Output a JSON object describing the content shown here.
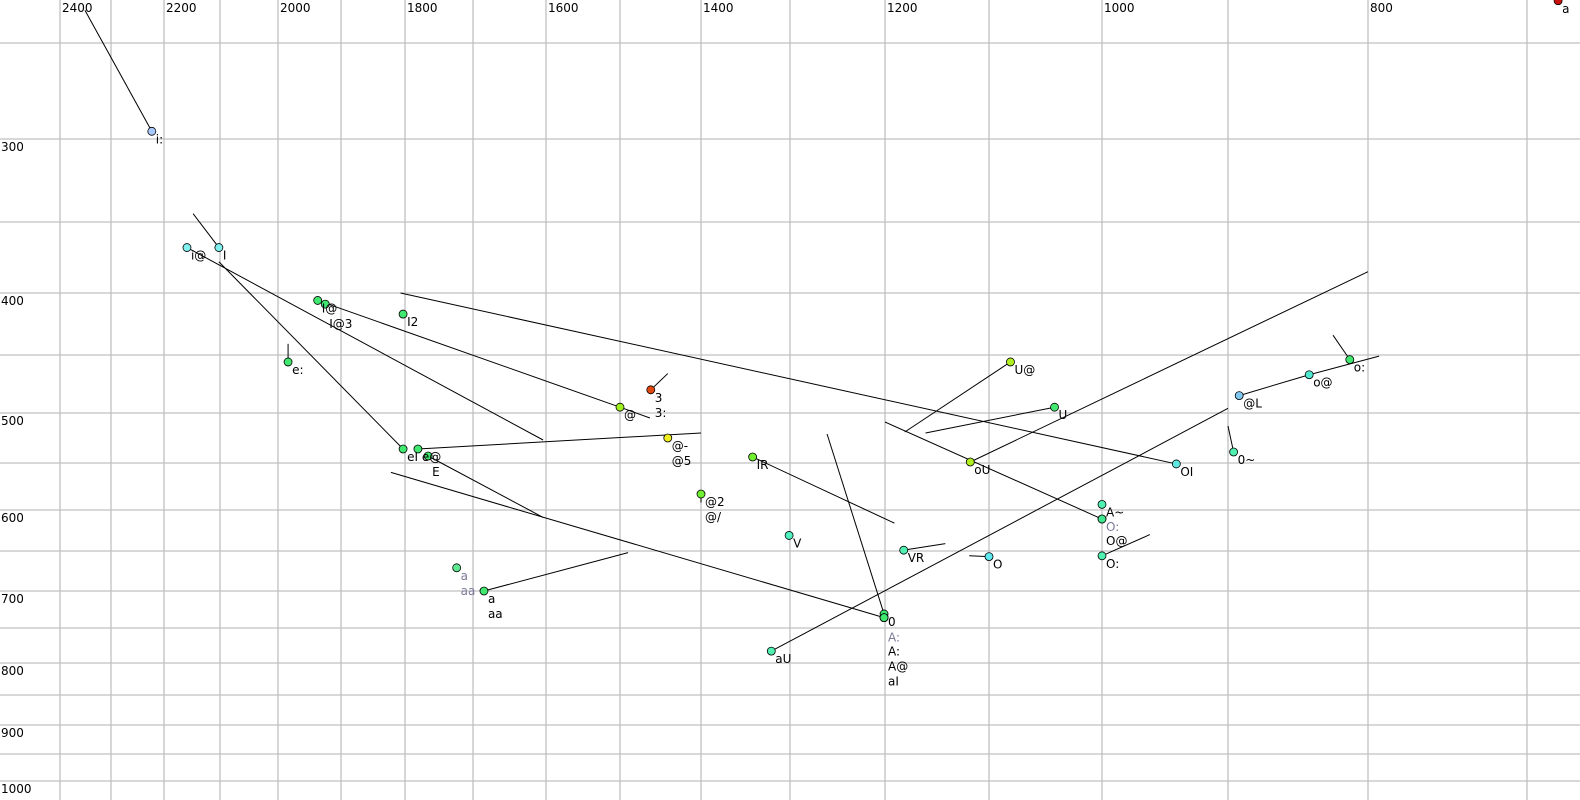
{
  "chart_data": {
    "type": "scatter",
    "title": "",
    "xlabel": "",
    "ylabel": "",
    "x_axis": {
      "ticks": [
        2400,
        2200,
        2000,
        1800,
        1600,
        1400,
        1200,
        1000,
        800
      ],
      "gridlines": [
        2400,
        2300,
        2200,
        2100,
        2000,
        1900,
        1800,
        1700,
        1600,
        1500,
        1400,
        1300,
        1200,
        1100,
        1000,
        900,
        800,
        700
      ],
      "reversed": true,
      "position": "top"
    },
    "y_axis": {
      "ticks": [
        300,
        400,
        500,
        600,
        700,
        800,
        900,
        1000
      ],
      "gridlines": [
        250,
        300,
        350,
        400,
        450,
        500,
        550,
        600,
        650,
        700,
        750,
        800,
        850,
        900,
        950,
        1000
      ],
      "reversed": true,
      "position": "left"
    },
    "xlim": [
      2400,
      700
    ],
    "ylim": [
      250,
      1000
    ],
    "grid": true,
    "grid_color": "#c0c0c0",
    "muted_label_color": "#7a7a9a",
    "points": [
      {
        "labels": [
          "a"
        ],
        "x": 683,
        "y": 228,
        "color": "#cc1010"
      },
      {
        "labels": [
          "i:"
        ],
        "x": 2223,
        "y": 296,
        "color": "#a8c8ff",
        "trail": [
          2351,
          233
        ]
      },
      {
        "labels": [
          "I"
        ],
        "x": 2102,
        "y": 368,
        "color": "#80f0f0",
        "trail": [
          2148,
          345
        ]
      },
      {
        "labels": [
          "i@"
        ],
        "x": 2159,
        "y": 368,
        "color": "#80f0f0",
        "trail": [
          1604,
          527
        ]
      },
      {
        "labels": [
          "e:"
        ],
        "x": 1984,
        "y": 456,
        "color": "#40e870",
        "trail": [
          1984,
          441
        ]
      },
      {
        "labels": [
          "I@"
        ],
        "x": 1937,
        "y": 406,
        "color": "#40e870",
        "trail": [
          1500,
          495
        ]
      },
      {
        "labels": [
          "I@3"
        ],
        "x": 1925,
        "y": 409,
        "color": "#40e870"
      },
      {
        "labels": [
          "I2"
        ],
        "x": 1803,
        "y": 417,
        "color": "#40e870"
      },
      {
        "labels": [
          "3",
          "3:"
        ],
        "x": 1462,
        "y": 480,
        "color": "#e04810",
        "trail": [
          1441,
          466
        ]
      },
      {
        "labels": [
          "@"
        ],
        "x": 1500,
        "y": 495,
        "color": "#a0f020",
        "trail": [
          1463,
          505
        ]
      },
      {
        "labels": [
          "@-",
          "@5"
        ],
        "x": 1441,
        "y": 525,
        "color": "#f0f020"
      },
      {
        "labels": [
          "eI"
        ],
        "x": 1803,
        "y": 536,
        "color": "#40e870",
        "trail": [
          2102,
          378
        ]
      },
      {
        "labels": [
          "e@"
        ],
        "x": 1781,
        "y": 536,
        "color": "#40e870",
        "trail": [
          1400,
          520
        ]
      },
      {
        "labels": [
          "E"
        ],
        "x": 1766,
        "y": 543,
        "color": "#40e870",
        "trail": [
          1604,
          609
        ]
      },
      {
        "labels": [
          "a",
          "aa"
        ],
        "x": 1724,
        "y": 671,
        "color": "#60e890",
        "muted": true
      },
      {
        "labels": [
          "a",
          "aa"
        ],
        "x": 1685,
        "y": 700,
        "color": "#40e870",
        "trail": [
          1490,
          652
        ]
      },
      {
        "labels": [
          "@2",
          "@/"
        ],
        "x": 1400,
        "y": 583,
        "color": "#70f030",
        "trail": [
          1400,
          592
        ]
      },
      {
        "labels": [
          "IR"
        ],
        "x": 1342,
        "y": 544,
        "color": "#70f030",
        "trail": [
          1191,
          616
        ]
      },
      {
        "labels": [
          "V"
        ],
        "x": 1301,
        "y": 631,
        "color": "#50f0c0"
      },
      {
        "labels": [
          "aU"
        ],
        "x": 1321,
        "y": 783,
        "color": "#50f0b0",
        "trail": [
          900,
          496
        ]
      },
      {
        "labels": [
          "0"
        ],
        "x": 1201,
        "y": 731,
        "color": "#40e870",
        "trail": [
          1261,
          521
        ]
      },
      {
        "labels": [
          "A:"
        ],
        "x": 1201,
        "y": 736,
        "color": "#40e870",
        "muted": true
      },
      {
        "labels": [
          "A:",
          "A@"
        ],
        "x": 1201,
        "y": 736,
        "color": "#40e870"
      },
      {
        "labels": [
          "aI"
        ],
        "x": 1201,
        "y": 736,
        "color": "#40e870",
        "trail": [
          1822,
          560
        ]
      },
      {
        "labels": [
          "VR"
        ],
        "x": 1182,
        "y": 649,
        "color": "#50f0b0",
        "trail": [
          1142,
          641
        ]
      },
      {
        "labels": [
          "U@"
        ],
        "x": 1081,
        "y": 456,
        "color": "#b0f020",
        "trail": [
          1181,
          519
        ]
      },
      {
        "labels": [
          "oU"
        ],
        "x": 1118,
        "y": 549,
        "color": "#b0f020",
        "trail": [
          800,
          385
        ]
      },
      {
        "labels": [
          "U"
        ],
        "x": 1042,
        "y": 495,
        "color": "#40e870",
        "trail": [
          1161,
          520
        ]
      },
      {
        "labels": [
          "o:"
        ],
        "x": 813,
        "y": 454,
        "color": "#40e870",
        "trail": [
          825,
          434
        ]
      },
      {
        "labels": [
          "o@"
        ],
        "x": 842,
        "y": 467,
        "color": "#50e8d0",
        "trail": [
          793,
          451
        ]
      },
      {
        "labels": [
          "@L"
        ],
        "x": 892,
        "y": 485,
        "color": "#80c8f0",
        "trail": [
          842,
          467
        ]
      },
      {
        "labels": [
          "0~"
        ],
        "x": 896,
        "y": 539,
        "color": "#50f0b0",
        "trail": [
          900,
          513
        ]
      },
      {
        "labels": [
          "OI"
        ],
        "x": 941,
        "y": 551,
        "color": "#60e8e0",
        "trail": [
          1807,
          400
        ]
      },
      {
        "labels": [
          "A~"
        ],
        "x": 1000,
        "y": 594,
        "color": "#50f0b0"
      },
      {
        "labels": [
          "O:"
        ],
        "x": 1000,
        "y": 611,
        "color": "#40e890",
        "muted": true,
        "trail": [
          1200,
          509
        ]
      },
      {
        "labels": [
          "O@"
        ],
        "x": 1000,
        "y": 611,
        "color": "#40e890"
      },
      {
        "labels": [
          "O:"
        ],
        "x": 1000,
        "y": 656,
        "color": "#50f0b0",
        "trail": [
          962,
          630
        ]
      },
      {
        "labels": [
          "O"
        ],
        "x": 1100,
        "y": 657,
        "color": "#60e8f0",
        "trail": [
          1119,
          656
        ]
      }
    ]
  }
}
